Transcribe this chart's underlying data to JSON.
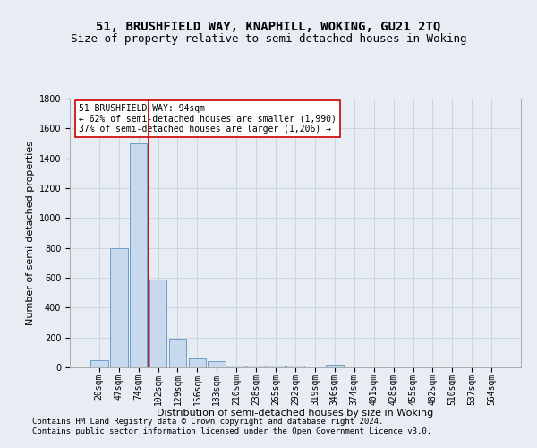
{
  "title": "51, BRUSHFIELD WAY, KNAPHILL, WOKING, GU21 2TQ",
  "subtitle": "Size of property relative to semi-detached houses in Woking",
  "xlabel": "Distribution of semi-detached houses by size in Woking",
  "ylabel": "Number of semi-detached properties",
  "footnote1": "Contains HM Land Registry data © Crown copyright and database right 2024.",
  "footnote2": "Contains public sector information licensed under the Open Government Licence v3.0.",
  "bar_labels": [
    "20sqm",
    "47sqm",
    "74sqm",
    "102sqm",
    "129sqm",
    "156sqm",
    "183sqm",
    "210sqm",
    "238sqm",
    "265sqm",
    "292sqm",
    "319sqm",
    "346sqm",
    "374sqm",
    "401sqm",
    "428sqm",
    "455sqm",
    "482sqm",
    "510sqm",
    "537sqm",
    "564sqm"
  ],
  "bar_values": [
    50,
    800,
    1500,
    590,
    195,
    60,
    40,
    15,
    15,
    15,
    15,
    0,
    20,
    0,
    0,
    0,
    0,
    0,
    0,
    0,
    0
  ],
  "bar_color": "#c9d9ed",
  "bar_edge_color": "#6b9ec7",
  "property_line_color": "#cc0000",
  "property_line_x": 2.5,
  "annotation_text": "51 BRUSHFIELD WAY: 94sqm\n← 62% of semi-detached houses are smaller (1,990)\n37% of semi-detached houses are larger (1,206) →",
  "annotation_box_color": "#ffffff",
  "annotation_box_edge_color": "#cc0000",
  "ylim": [
    0,
    1800
  ],
  "yticks": [
    0,
    200,
    400,
    600,
    800,
    1000,
    1200,
    1400,
    1600,
    1800
  ],
  "grid_color": "#c8d4e3",
  "background_color": "#e8edf4",
  "title_fontsize": 10,
  "subtitle_fontsize": 9,
  "axis_label_fontsize": 8,
  "tick_fontsize": 7,
  "annotation_fontsize": 7,
  "footnote_fontsize": 6.5
}
